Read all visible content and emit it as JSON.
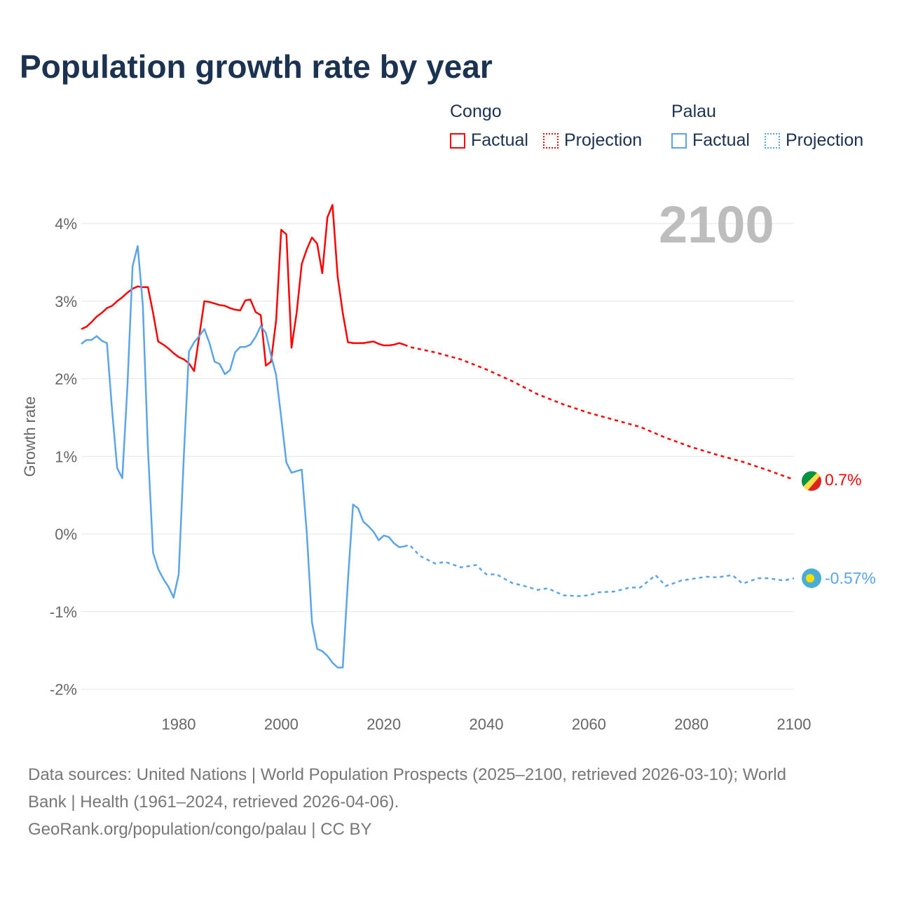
{
  "title": "Population growth rate by year",
  "year_label": "2100",
  "legend": {
    "groups": [
      {
        "name": "Congo",
        "factual": "Factual",
        "projection": "Projection",
        "color": "#ff0000"
      },
      {
        "name": "Palau",
        "factual": "Factual",
        "projection": "Projection",
        "color": "#5aa5ea"
      }
    ]
  },
  "footer": {
    "line1": "Data sources: United Nations | World Population Prospects (2025–2100, retrieved 2026-03-10); World",
    "line2": "Bank | Health (1961–2024, retrieved 2026-04-06).",
    "line3": "GeoRank.org/population/congo/palau | CC BY"
  },
  "chart_data": {
    "type": "line",
    "title": "Population growth rate by year",
    "ylabel": "Growth rate",
    "xlabel": "",
    "xlim": [
      1961,
      2100
    ],
    "ylim": [
      -2.2,
      4.4
    ],
    "xticks": [
      1980,
      2000,
      2020,
      2040,
      2060,
      2080,
      2100
    ],
    "yticks": [
      {
        "v": 4,
        "label": "4%"
      },
      {
        "v": 3,
        "label": "3%"
      },
      {
        "v": 2,
        "label": "2%"
      },
      {
        "v": 1,
        "label": "1%"
      },
      {
        "v": 0,
        "label": "0%"
      },
      {
        "v": -1,
        "label": "-1%"
      },
      {
        "v": -2,
        "label": "-2%"
      }
    ],
    "grid": true,
    "series": [
      {
        "name": "Congo",
        "color": "#ff0000",
        "end_label": "0.7%",
        "factual": {
          "start": 1961,
          "values": [
            2.64,
            2.67,
            2.73,
            2.8,
            2.85,
            2.91,
            2.94,
            3.0,
            3.05,
            3.11,
            3.16,
            3.19,
            3.18,
            3.18,
            2.85,
            2.48,
            2.44,
            2.39,
            2.33,
            2.28,
            2.25,
            2.2,
            2.1,
            2.55,
            3.0,
            2.99,
            2.97,
            2.95,
            2.94,
            2.91,
            2.89,
            2.88,
            3.01,
            3.02,
            2.86,
            2.82,
            2.17,
            2.22,
            2.75,
            3.92,
            3.86,
            2.4,
            2.85,
            3.48,
            3.67,
            3.82,
            3.74,
            3.36,
            4.08,
            4.24,
            3.32,
            2.85,
            2.47,
            2.46,
            2.46,
            2.46,
            2.47,
            2.48,
            2.45,
            2.43,
            2.43,
            2.44,
            2.46,
            2.44
          ]
        },
        "projection": {
          "x": [
            2024,
            2025,
            2030,
            2035,
            2040,
            2045,
            2050,
            2055,
            2060,
            2065,
            2070,
            2075,
            2080,
            2085,
            2090,
            2095,
            2100
          ],
          "values": [
            2.44,
            2.41,
            2.34,
            2.25,
            2.12,
            1.97,
            1.8,
            1.67,
            1.56,
            1.47,
            1.38,
            1.24,
            1.12,
            1.02,
            0.93,
            0.82,
            0.7
          ]
        }
      },
      {
        "name": "Palau",
        "color": "#5aa5ea",
        "end_label": "-0.57%",
        "factual": {
          "start": 1961,
          "values": [
            2.45,
            2.5,
            2.5,
            2.55,
            2.49,
            2.46,
            1.6,
            0.85,
            0.72,
            1.9,
            3.45,
            3.71,
            2.95,
            1.1,
            -0.24,
            -0.45,
            -0.58,
            -0.68,
            -0.82,
            -0.52,
            1.0,
            2.35,
            2.47,
            2.55,
            2.64,
            2.46,
            2.22,
            2.19,
            2.06,
            2.11,
            2.34,
            2.41,
            2.41,
            2.44,
            2.54,
            2.68,
            2.59,
            2.3,
            2.05,
            1.5,
            0.92,
            0.79,
            0.81,
            0.83,
            0.0,
            -1.14,
            -1.48,
            -1.51,
            -1.57,
            -1.66,
            -1.72,
            -1.72,
            -0.6,
            0.38,
            0.33,
            0.16,
            0.1,
            0.03,
            -0.08,
            -0.02,
            -0.04,
            -0.12,
            -0.17,
            -0.16
          ]
        },
        "projection": {
          "x": [
            2024,
            2025,
            2027,
            2030,
            2032,
            2035,
            2038,
            2040,
            2042,
            2045,
            2048,
            2050,
            2052,
            2055,
            2058,
            2060,
            2062,
            2065,
            2068,
            2070,
            2073,
            2075,
            2078,
            2080,
            2083,
            2085,
            2088,
            2090,
            2093,
            2095,
            2098,
            2100
          ],
          "values": [
            -0.16,
            -0.14,
            -0.28,
            -0.38,
            -0.36,
            -0.43,
            -0.4,
            -0.52,
            -0.52,
            -0.63,
            -0.68,
            -0.72,
            -0.7,
            -0.79,
            -0.8,
            -0.79,
            -0.75,
            -0.74,
            -0.69,
            -0.69,
            -0.53,
            -0.67,
            -0.6,
            -0.58,
            -0.55,
            -0.56,
            -0.53,
            -0.64,
            -0.57,
            -0.57,
            -0.6,
            -0.57
          ]
        }
      }
    ]
  }
}
